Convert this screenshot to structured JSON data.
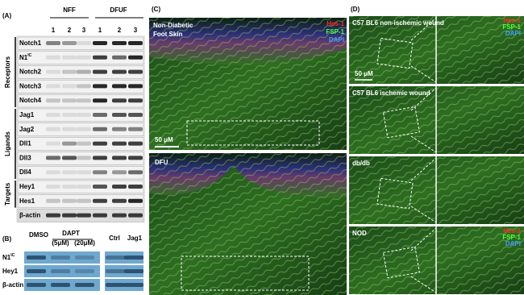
{
  "panel_a": {
    "label": "(A)",
    "groups": [
      "NFF",
      "DFUF"
    ],
    "lanes": [
      "1",
      "2",
      "3",
      "1",
      "2",
      "3"
    ],
    "rows": [
      {
        "label": "Notch1"
      },
      {
        "label": "N1",
        "sup": "IC"
      },
      {
        "label": "Notch2"
      },
      {
        "label": "Notch3"
      },
      {
        "label": "Notch4"
      },
      {
        "label": "Jag1"
      },
      {
        "label": "Jag2"
      },
      {
        "label": "Dll1"
      },
      {
        "label": "Dll3"
      },
      {
        "label": "Dll4"
      },
      {
        "label": "Hey1"
      },
      {
        "label": "Hes1"
      },
      {
        "label": "β-actin"
      }
    ],
    "sections": [
      "Receptors",
      "Ligands",
      "Targets"
    ]
  },
  "panel_b": {
    "label": "(B)",
    "columns": [
      "DMSO",
      "DAPT",
      "(5μM)",
      "(20μM)",
      "Ctrl",
      "Jag1"
    ],
    "rows": [
      {
        "label": "N1",
        "sup": "IC"
      },
      {
        "label": "Hey1"
      },
      {
        "label": "β-actin"
      }
    ]
  },
  "panel_c": {
    "label": "(C)",
    "top_title": [
      "Non-Diabetic",
      "Foot Skin"
    ],
    "legend": [
      "Hes-1",
      "FSP-1",
      "DAPI"
    ],
    "scale": "50 μM",
    "bottom_title": "DFU"
  },
  "panel_d": {
    "label": "(D)",
    "rows": [
      "C57 BL6 non-ischemic wound",
      "C57 BL6 ischemic wound",
      "db/db",
      "NOD"
    ],
    "legend": [
      "Hes-1",
      "FSP-1",
      "DAPI"
    ],
    "scale": "50 μM"
  }
}
